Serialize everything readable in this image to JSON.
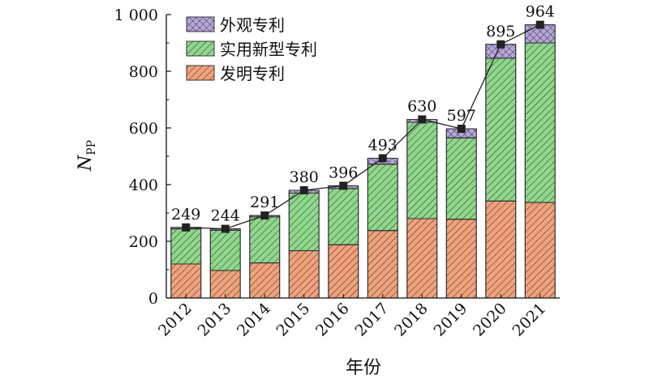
{
  "chart_data": {
    "type": "bar",
    "stacked": true,
    "categories": [
      "2012",
      "2013",
      "2014",
      "2015",
      "2016",
      "2017",
      "2018",
      "2019",
      "2020",
      "2021"
    ],
    "series": [
      {
        "name": "发明专利",
        "color": "#f2a27b",
        "values": [
          120,
          97,
          124,
          167,
          188,
          238,
          280,
          278,
          342,
          337
        ]
      },
      {
        "name": "实用新型专利",
        "color": "#8fd88c",
        "values": [
          124,
          142,
          162,
          203,
          198,
          234,
          340,
          287,
          504,
          563
        ]
      },
      {
        "name": "外观专利",
        "color": "#b7a6dd",
        "values": [
          5,
          5,
          5,
          10,
          10,
          21,
          10,
          32,
          49,
          64
        ]
      }
    ],
    "totals": [
      249,
      244,
      291,
      380,
      396,
      493,
      630,
      597,
      895,
      964
    ],
    "ylim": [
      0,
      1000
    ],
    "yticks": [
      0,
      200,
      400,
      600,
      800,
      1000
    ],
    "ytick_labels": [
      "0",
      "200",
      "400",
      "600",
      "800",
      "1 000"
    ],
    "ylabel": "N",
    "ylabel_sub": "PP",
    "xlabel": "年份",
    "legend": {
      "placement": "top-left",
      "entries": [
        "外观专利",
        "实用新型专利",
        "发明专利"
      ]
    },
    "line_color": "#222222",
    "grid": false
  }
}
